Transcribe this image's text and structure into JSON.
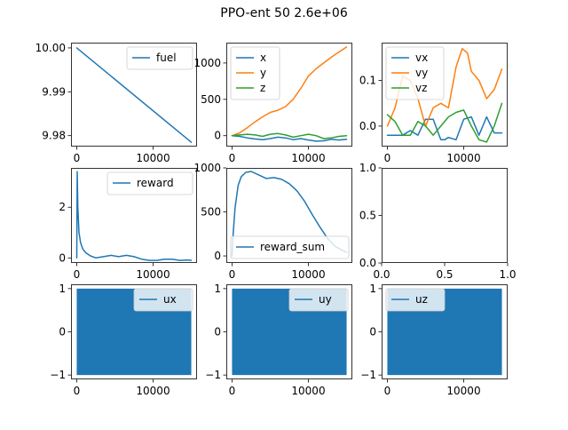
{
  "figure": {
    "title": "PPO-ent 50 2.6e+06"
  },
  "colors": {
    "c0": "#1f77b4",
    "c1": "#ff7f0e",
    "c2": "#2ca02c"
  },
  "chart_data": [
    {
      "id": "fuel",
      "type": "line",
      "title": "",
      "xlabel": "",
      "ylabel": "",
      "xlim": [
        -750,
        15750
      ],
      "ylim": [
        9.9775,
        10.0012
      ],
      "xticks": [
        0,
        10000
      ],
      "yticks": [
        9.98,
        9.99,
        10.0
      ],
      "ytick_labels": [
        "9.98",
        "9.99",
        "10.00"
      ],
      "legend_loc": "upper-right",
      "series": [
        {
          "name": "fuel",
          "color": "#1f77b4",
          "x": [
            0,
            15000
          ],
          "y": [
            10.0,
            9.9785
          ]
        }
      ]
    },
    {
      "id": "position",
      "type": "line",
      "title": "",
      "xlim": [
        -750,
        15750
      ],
      "ylim": [
        -150,
        1280
      ],
      "xticks": [
        0,
        10000
      ],
      "yticks": [
        0,
        500,
        1000
      ],
      "ytick_labels": [
        "0",
        "500",
        "1000"
      ],
      "legend_loc": "upper-left",
      "series": [
        {
          "name": "x",
          "color": "#1f77b4",
          "x": [
            0,
            1000,
            2000,
            3000,
            4000,
            5000,
            6000,
            7000,
            8000,
            9000,
            10000,
            11000,
            12000,
            13000,
            14000,
            15000
          ],
          "y": [
            0,
            -10,
            -30,
            -45,
            -55,
            -40,
            -20,
            -30,
            -55,
            -40,
            -60,
            -75,
            -70,
            -50,
            -60,
            -50
          ]
        },
        {
          "name": "y",
          "color": "#ff7f0e",
          "x": [
            0,
            1000,
            2000,
            3000,
            4000,
            5000,
            6000,
            7000,
            8000,
            9000,
            10000,
            11000,
            12000,
            13000,
            14000,
            15000
          ],
          "y": [
            0,
            40,
            110,
            190,
            260,
            320,
            350,
            400,
            500,
            650,
            820,
            920,
            1000,
            1080,
            1150,
            1220
          ]
        },
        {
          "name": "z",
          "color": "#2ca02c",
          "x": [
            0,
            1000,
            2000,
            3000,
            4000,
            5000,
            6000,
            7000,
            8000,
            9000,
            10000,
            11000,
            12000,
            13000,
            14000,
            15000
          ],
          "y": [
            0,
            10,
            20,
            10,
            -10,
            20,
            30,
            10,
            -20,
            0,
            20,
            0,
            -40,
            -30,
            -10,
            0
          ]
        }
      ]
    },
    {
      "id": "velocity",
      "type": "line",
      "title": "",
      "xlim": [
        -750,
        15750
      ],
      "ylim": [
        -0.045,
        0.183
      ],
      "xticks": [
        0,
        10000
      ],
      "yticks": [
        0.0,
        0.1
      ],
      "ytick_labels": [
        "0.0",
        "0.1"
      ],
      "legend_loc": "upper-left",
      "series": [
        {
          "name": "vx",
          "color": "#1f77b4",
          "x": [
            0,
            1000,
            2000,
            3000,
            4000,
            5000,
            6000,
            7000,
            7500,
            8000,
            9000,
            10000,
            11000,
            12000,
            13000,
            14000,
            15000
          ],
          "y": [
            -0.02,
            -0.02,
            -0.02,
            -0.01,
            -0.02,
            0.015,
            0.015,
            -0.03,
            -0.03,
            -0.025,
            -0.03,
            0.015,
            0.02,
            -0.02,
            0.02,
            -0.015,
            -0.015
          ]
        },
        {
          "name": "vy",
          "color": "#ff7f0e",
          "x": [
            0,
            1000,
            2000,
            3000,
            4000,
            5000,
            6000,
            7000,
            8000,
            9000,
            9800,
            10500,
            11000,
            12000,
            13000,
            14000,
            15000
          ],
          "y": [
            0.0,
            0.04,
            0.11,
            0.1,
            0.06,
            0.0,
            0.04,
            0.05,
            0.04,
            0.13,
            0.17,
            0.16,
            0.12,
            0.1,
            0.06,
            0.08,
            0.125
          ]
        },
        {
          "name": "vz",
          "color": "#2ca02c",
          "x": [
            0,
            1000,
            2000,
            3000,
            4000,
            5000,
            6000,
            7000,
            8000,
            9000,
            10000,
            11000,
            12000,
            13000,
            14000,
            15000
          ],
          "y": [
            0.025,
            0.01,
            -0.02,
            -0.02,
            0.01,
            0.0,
            -0.02,
            0.0,
            0.02,
            0.03,
            0.035,
            0.0,
            -0.03,
            -0.035,
            0.0,
            0.05
          ]
        }
      ]
    },
    {
      "id": "reward",
      "type": "line",
      "title": "",
      "xlim": [
        -750,
        15750
      ],
      "ylim": [
        -0.2,
        3.55
      ],
      "xticks": [
        0,
        10000
      ],
      "yticks": [
        0,
        2
      ],
      "ytick_labels": [
        "0",
        "2"
      ],
      "legend_loc": "upper-right",
      "series": [
        {
          "name": "reward",
          "color": "#1f77b4",
          "x": [
            0,
            60,
            150,
            300,
            500,
            800,
            1200,
            1800,
            2500,
            3500,
            4500,
            5500,
            6500,
            7500,
            8500,
            9500,
            10500,
            11500,
            12500,
            13500,
            14500,
            15000
          ],
          "y": [
            0,
            3.4,
            2.0,
            1.0,
            0.6,
            0.35,
            0.2,
            0.08,
            0.0,
            0.05,
            0.1,
            0.05,
            0.1,
            0.05,
            -0.05,
            -0.1,
            -0.1,
            -0.05,
            -0.05,
            -0.1,
            -0.08,
            -0.1
          ]
        }
      ]
    },
    {
      "id": "reward_sum",
      "type": "line",
      "title": "",
      "xlim": [
        -750,
        15750
      ],
      "ylim": [
        -80,
        1000
      ],
      "xticks": [
        0,
        10000
      ],
      "yticks": [
        0,
        500,
        1000
      ],
      "ytick_labels": [
        "0",
        "500",
        "1000"
      ],
      "legend_loc": "lower-left",
      "series": [
        {
          "name": "reward_sum",
          "color": "#1f77b4",
          "x": [
            0,
            150,
            400,
            800,
            1200,
            1800,
            2500,
            3500,
            4500,
            5500,
            6500,
            7500,
            8500,
            9500,
            10500,
            11500,
            12500,
            13500,
            14500,
            15000
          ],
          "y": [
            0,
            250,
            550,
            800,
            900,
            950,
            960,
            920,
            880,
            890,
            870,
            820,
            740,
            620,
            470,
            330,
            200,
            110,
            60,
            40
          ]
        }
      ]
    },
    {
      "id": "empty",
      "type": "line",
      "title": "",
      "xlim": [
        0,
        1
      ],
      "ylim": [
        0,
        1
      ],
      "xticks": [
        0.0,
        0.5,
        1.0
      ],
      "xtick_labels": [
        "0.0",
        "0.5",
        "1.0"
      ],
      "yticks": [
        0.0,
        0.5,
        1.0
      ],
      "ytick_labels": [
        "0.0",
        "0.5",
        "1.0"
      ],
      "series": []
    },
    {
      "id": "ux",
      "type": "area",
      "title": "",
      "xlim": [
        -750,
        15750
      ],
      "ylim": [
        -1.1,
        1.1
      ],
      "xticks": [
        0,
        10000
      ],
      "yticks": [
        -1,
        0,
        1
      ],
      "ytick_labels": [
        "−1",
        "0",
        "1"
      ],
      "legend_loc": "upper-right",
      "series": [
        {
          "name": "ux",
          "color": "#1f77b4",
          "x": [
            0,
            15000
          ],
          "y_min": -1,
          "y_max": 1
        }
      ]
    },
    {
      "id": "uy",
      "type": "area",
      "title": "",
      "xlim": [
        -750,
        15750
      ],
      "ylim": [
        -1.1,
        1.1
      ],
      "xticks": [
        0,
        10000
      ],
      "yticks": [
        -1,
        0,
        1
      ],
      "ytick_labels": [
        "−1",
        "0",
        "1"
      ],
      "legend_loc": "upper-right",
      "series": [
        {
          "name": "uy",
          "color": "#1f77b4",
          "x": [
            0,
            15000
          ],
          "y_min": -1,
          "y_max": 1
        }
      ]
    },
    {
      "id": "uz",
      "type": "area",
      "title": "",
      "xlim": [
        -750,
        15750
      ],
      "ylim": [
        -1.1,
        1.1
      ],
      "xticks": [
        0,
        10000
      ],
      "yticks": [
        -1,
        0,
        1
      ],
      "ytick_labels": [
        "−1",
        "0",
        "1"
      ],
      "legend_loc": "upper-left",
      "series": [
        {
          "name": "uz",
          "color": "#1f77b4",
          "x": [
            0,
            15000
          ],
          "y_min": -1,
          "y_max": 1
        }
      ]
    }
  ]
}
